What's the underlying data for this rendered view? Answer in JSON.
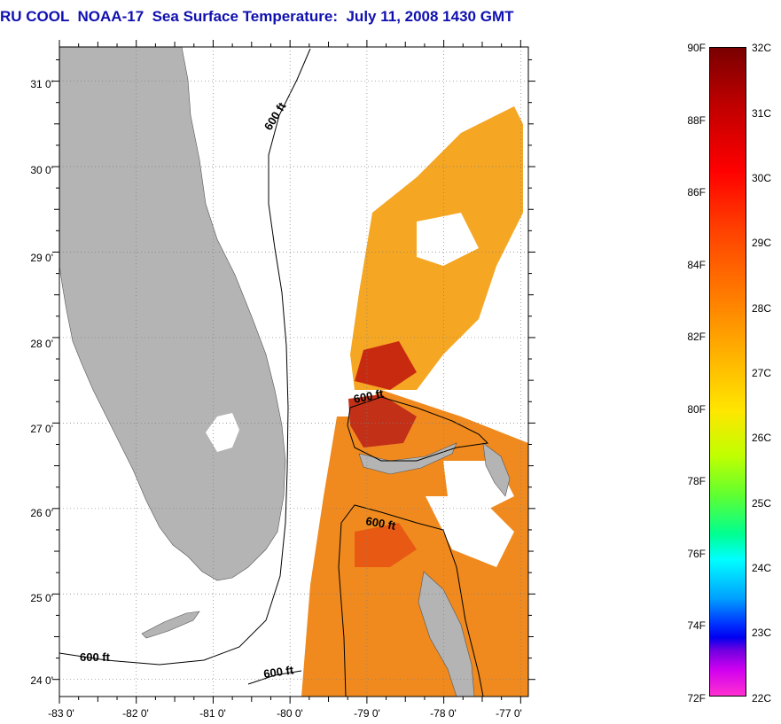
{
  "title": "RU COOL  NOAA-17  Sea Surface Temperature:  July 11, 2008 1430 GMT",
  "map": {
    "lat_labels": [
      "31 0'",
      "30 0'",
      "29 0'",
      "28 0'",
      "27 0'",
      "26 0'",
      "25 0'",
      "24 0'"
    ],
    "lon_labels": [
      "-83 0'",
      "-82 0'",
      "-81 0'",
      "-80 0'",
      "-79 0'",
      "-78 0'",
      "-77 0'"
    ],
    "lat_values": [
      31,
      30,
      29,
      28,
      27,
      26,
      25,
      24
    ],
    "lon_values": [
      -83,
      -82,
      -81,
      -80,
      -79,
      -78,
      -77
    ],
    "bounds": {
      "lon_min": -83,
      "lon_max": -76.9,
      "lat_min": 23.8,
      "lat_max": 31.4
    },
    "contour_labels": [
      "600 ft",
      "600 ft",
      "600 ft",
      "600 ft",
      "600 ft"
    ],
    "colors": {
      "land": "#b4b4b4",
      "grid": "#7f7f7f",
      "cloud": "#ffffff",
      "title": "#1010b0"
    }
  },
  "colorbar": {
    "fahrenheit": [
      "90F",
      "88F",
      "86F",
      "84F",
      "82F",
      "80F",
      "78F",
      "76F",
      "74F",
      "72F"
    ],
    "celsius": [
      "32C",
      "31C",
      "30C",
      "29C",
      "28C",
      "27C",
      "26C",
      "25C",
      "24C",
      "23C",
      "22C"
    ],
    "range_f": [
      72,
      90
    ],
    "range_c": [
      22,
      32
    ]
  }
}
